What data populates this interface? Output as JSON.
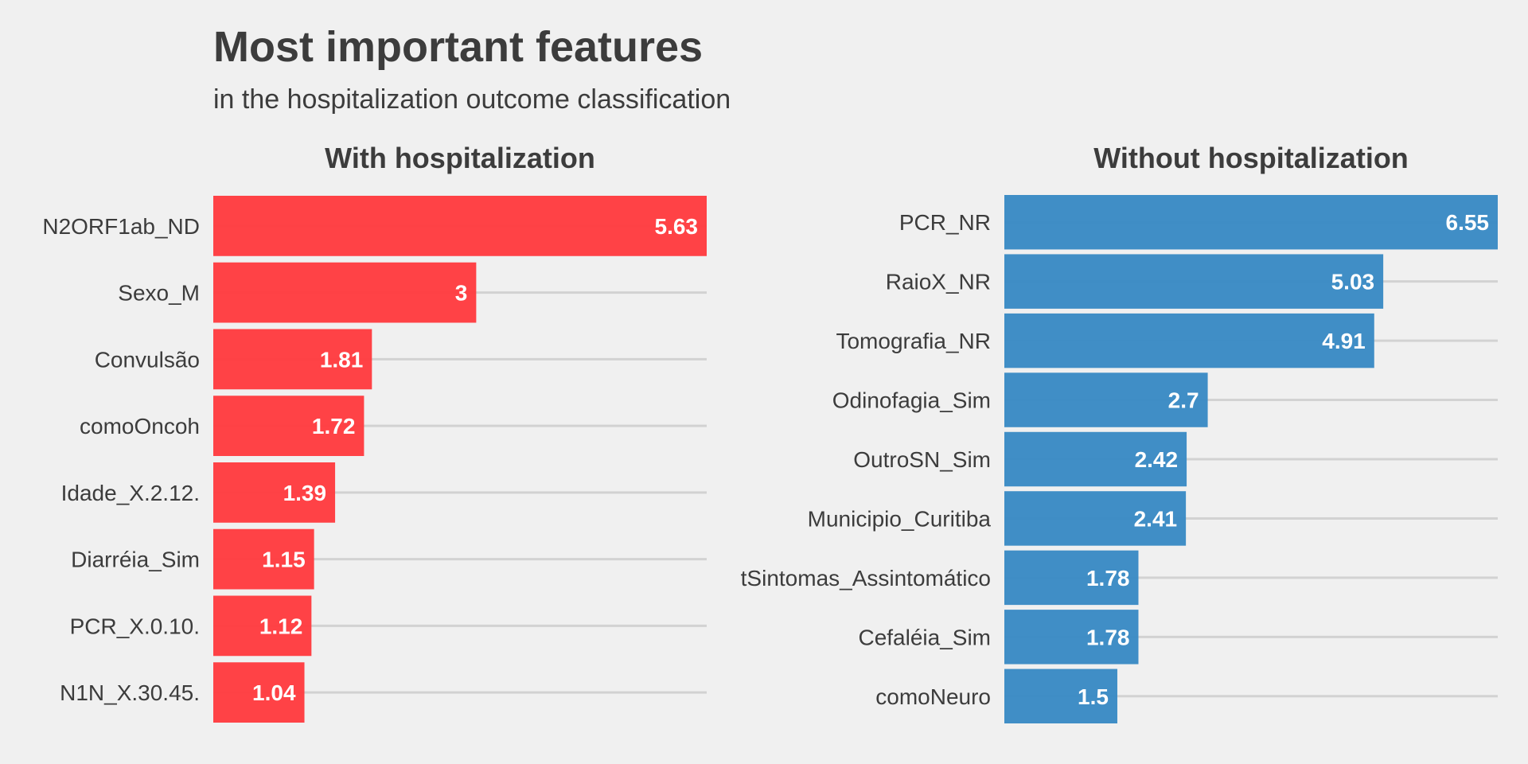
{
  "figure": {
    "title": "Most important features",
    "subtitle": "in the hospitalization outcome classification"
  },
  "chart_data": [
    {
      "type": "bar",
      "orientation": "horizontal",
      "title": "With hospitalization",
      "categories": [
        "N2ORF1ab_ND",
        "Sexo_M",
        "Convulsão",
        "comoOncoh",
        "Idade_X.2.12.",
        "Diarréia_Sim",
        "PCR_X.0.10.",
        "N1N_X.30.45."
      ],
      "values": [
        5.63,
        3,
        1.81,
        1.72,
        1.39,
        1.15,
        1.12,
        1.04
      ],
      "value_labels": [
        "5.63",
        "3",
        "1.81",
        "1.72",
        "1.39",
        "1.15",
        "1.12",
        "1.04"
      ],
      "xlim": [
        0,
        5.63
      ],
      "color": "#ff3c40",
      "grid": "horizontal",
      "legend": "none"
    },
    {
      "type": "bar",
      "orientation": "horizontal",
      "title": "Without hospitalization",
      "categories": [
        "PCR_NR",
        "RaioX_NR",
        "Tomografia_NR",
        "Odinofagia_Sim",
        "OutroSN_Sim",
        "Municipio_Curitiba",
        "tSintomas_Assintomático",
        "Cefaléia_Sim",
        "comoNeuro"
      ],
      "values": [
        6.55,
        5.03,
        4.91,
        2.7,
        2.42,
        2.41,
        1.78,
        1.78,
        1.5
      ],
      "value_labels": [
        "6.55",
        "5.03",
        "4.91",
        "2.7",
        "2.42",
        "2.41",
        "1.78",
        "1.78",
        "1.5"
      ],
      "xlim": [
        0,
        6.55
      ],
      "color": "#3a8ac4",
      "grid": "horizontal",
      "legend": "none"
    }
  ]
}
